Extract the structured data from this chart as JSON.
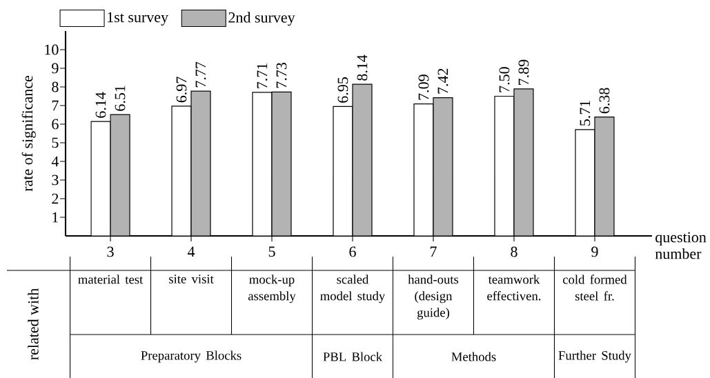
{
  "chart_data": {
    "type": "bar",
    "xlabel": "question number",
    "ylabel": "rate of significance",
    "categories": [
      "3",
      "4",
      "5",
      "6",
      "7",
      "8",
      "9"
    ],
    "series": [
      {
        "name": "1st survey",
        "color": "#ffffff",
        "values": [
          6.14,
          6.97,
          7.71,
          6.95,
          7.09,
          7.5,
          5.71
        ],
        "value_labels": [
          "6.14",
          "6.97",
          "7.71",
          "6.95",
          "7.09",
          "7.50",
          "5.71"
        ]
      },
      {
        "name": "2nd survey",
        "color": "#b3b3b3",
        "values": [
          6.51,
          7.77,
          7.73,
          8.14,
          7.42,
          7.89,
          6.38
        ],
        "value_labels": [
          "6.51",
          "7.77",
          "7.73",
          "8.14",
          "7.42",
          "7.89",
          "6.38"
        ]
      }
    ],
    "ylim": [
      0,
      11
    ],
    "yticks": [
      1,
      2,
      3,
      4,
      5,
      6,
      7,
      8,
      9,
      10
    ],
    "grid": false,
    "legend": "top left",
    "annotations": [
      "related with",
      "material test",
      "site visit",
      "mock-up assembly",
      "scaled model study",
      "hand-outs (design guide)",
      "teamwork effectiven.",
      "cold formed steel fr.",
      "Preparatory Blocks",
      "PBL Block",
      "Methods",
      "Further Study"
    ]
  }
}
